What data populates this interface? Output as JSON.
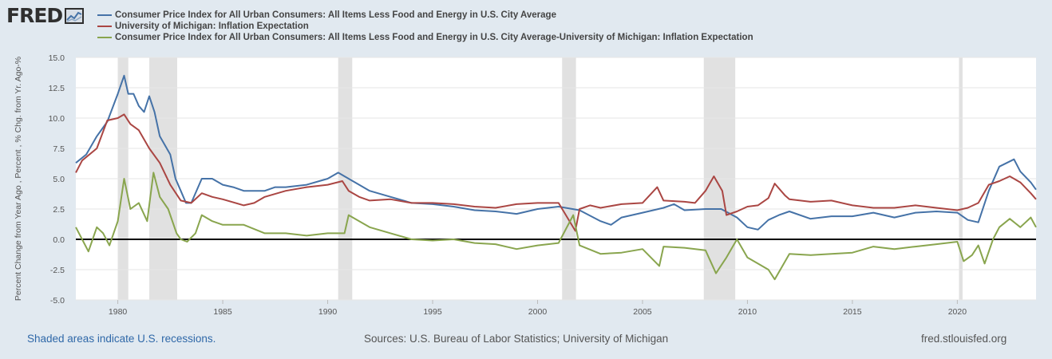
{
  "logo": {
    "text": "FRED",
    "icon": "fred-chart-icon"
  },
  "footer": {
    "recession_note": "Shaded areas indicate U.S. recessions.",
    "sources": "Sources: U.S. Bureau of Labor Statistics; University of Michigan",
    "site": "fred.stlouisfed.org"
  },
  "colors": {
    "background": "#e1e9f0",
    "plot": "#ffffff",
    "recession": "#e1e1e1",
    "zero_line": "#000000"
  },
  "chart_data": {
    "type": "line",
    "title": "",
    "xlabel": "",
    "ylabel": "Percent Change from Year Ago , Percent , % Chg. from Yr. Ago-%",
    "xlim": [
      1978.0,
      2023.75
    ],
    "ylim": [
      -5.0,
      15.0
    ],
    "x_ticks": [
      1980,
      1985,
      1990,
      1995,
      2000,
      2005,
      2010,
      2015,
      2020
    ],
    "x_tick_labels": [
      "1980",
      "1985",
      "1990",
      "1995",
      "2000",
      "2005",
      "2010",
      "2015",
      "2020"
    ],
    "y_ticks": [
      -5.0,
      -2.5,
      0.0,
      2.5,
      5.0,
      7.5,
      10.0,
      12.5,
      15.0
    ],
    "y_tick_labels": [
      "-5.0",
      "-2.5",
      "0.0",
      "2.5",
      "5.0",
      "7.5",
      "10.0",
      "12.5",
      "15.0"
    ],
    "grid": "horizontal",
    "legend": "top-left",
    "recessions": [
      [
        1980.0,
        1980.5
      ],
      [
        1981.5,
        1982.83
      ],
      [
        1990.5,
        1991.17
      ],
      [
        2001.17,
        2001.83
      ],
      [
        2007.92,
        2009.42
      ],
      [
        2020.08,
        2020.25
      ]
    ],
    "series": [
      {
        "name": "Consumer Price Index for All Urban Consumers: All Items Less Food and Energy in U.S. City Average",
        "color": "#4572a7",
        "x": [
          1978.0,
          1978.5,
          1979.0,
          1979.5,
          1980.0,
          1980.3,
          1980.5,
          1980.75,
          1981.0,
          1981.25,
          1981.5,
          1981.75,
          1982.0,
          1982.5,
          1982.75,
          1983.0,
          1983.25,
          1983.5,
          1984.0,
          1984.5,
          1985.0,
          1985.5,
          1986.0,
          1986.5,
          1987.0,
          1987.5,
          1988.0,
          1989.0,
          1990.0,
          1990.5,
          1991.0,
          1991.5,
          1992.0,
          1993.0,
          1994.0,
          1995.0,
          1996.0,
          1997.0,
          1998.0,
          1999.0,
          2000.0,
          2001.0,
          2002.0,
          2003.0,
          2003.5,
          2004.0,
          2005.0,
          2006.0,
          2006.5,
          2007.0,
          2008.0,
          2008.75,
          2009.5,
          2010.0,
          2010.5,
          2011.0,
          2011.5,
          2012.0,
          2013.0,
          2014.0,
          2015.0,
          2016.0,
          2017.0,
          2018.0,
          2019.0,
          2020.0,
          2020.5,
          2021.0,
          2021.5,
          2022.0,
          2022.7,
          2023.0,
          2023.5,
          2023.75
        ],
        "values": [
          6.3,
          7.0,
          8.5,
          9.7,
          12.0,
          13.5,
          12.0,
          12.0,
          11.0,
          10.5,
          11.8,
          10.5,
          8.5,
          7.0,
          5.0,
          4.0,
          3.0,
          3.0,
          5.0,
          5.0,
          4.5,
          4.3,
          4.0,
          4.0,
          4.0,
          4.3,
          4.3,
          4.5,
          5.0,
          5.5,
          5.0,
          4.5,
          4.0,
          3.5,
          3.0,
          2.9,
          2.7,
          2.4,
          2.3,
          2.1,
          2.5,
          2.7,
          2.4,
          1.5,
          1.2,
          1.8,
          2.2,
          2.6,
          2.9,
          2.4,
          2.5,
          2.5,
          1.8,
          1.0,
          0.8,
          1.6,
          2.0,
          2.3,
          1.7,
          1.9,
          1.9,
          2.2,
          1.8,
          2.2,
          2.3,
          2.2,
          1.6,
          1.4,
          4.0,
          6.0,
          6.6,
          5.6,
          4.7,
          4.1
        ]
      },
      {
        "name": "University of Michigan: Inflation Expectation",
        "color": "#aa4643",
        "x": [
          1978.0,
          1978.3,
          1979.0,
          1979.5,
          1980.0,
          1980.3,
          1980.6,
          1981.0,
          1981.5,
          1982.0,
          1982.5,
          1983.0,
          1983.5,
          1984.0,
          1984.5,
          1985.0,
          1986.0,
          1986.5,
          1987.0,
          1988.0,
          1989.0,
          1990.0,
          1990.7,
          1991.0,
          1991.5,
          1992.0,
          1993.0,
          1994.0,
          1995.0,
          1996.0,
          1997.0,
          1998.0,
          1999.0,
          2000.0,
          2001.0,
          2001.8,
          2002.0,
          2002.5,
          2003.0,
          2004.0,
          2005.0,
          2005.7,
          2006.0,
          2007.0,
          2007.5,
          2008.0,
          2008.4,
          2008.8,
          2009.0,
          2009.5,
          2010.0,
          2010.5,
          2011.0,
          2011.3,
          2011.8,
          2012.0,
          2013.0,
          2014.0,
          2015.0,
          2016.0,
          2017.0,
          2018.0,
          2019.0,
          2020.0,
          2020.5,
          2021.0,
          2021.5,
          2022.0,
          2022.5,
          2023.0,
          2023.5,
          2023.75
        ],
        "values": [
          5.5,
          6.5,
          7.5,
          9.8,
          10.0,
          10.3,
          9.5,
          9.0,
          7.5,
          6.3,
          4.5,
          3.2,
          3.0,
          3.8,
          3.5,
          3.3,
          2.8,
          3.0,
          3.5,
          4.0,
          4.3,
          4.5,
          4.8,
          4.0,
          3.5,
          3.2,
          3.3,
          3.0,
          3.0,
          2.9,
          2.7,
          2.6,
          2.9,
          3.0,
          3.0,
          0.7,
          2.5,
          2.8,
          2.6,
          2.9,
          3.0,
          4.3,
          3.2,
          3.1,
          3.0,
          4.0,
          5.2,
          4.0,
          2.0,
          2.3,
          2.7,
          2.8,
          3.4,
          4.6,
          3.6,
          3.3,
          3.1,
          3.2,
          2.8,
          2.6,
          2.6,
          2.8,
          2.6,
          2.4,
          2.6,
          3.0,
          4.5,
          4.8,
          5.2,
          4.7,
          3.8,
          3.3
        ]
      },
      {
        "name": "Consumer Price Index for All Urban Consumers: All Items Less Food and Energy in U.S. City Average-University of Michigan: Inflation Expectation",
        "color": "#89a54e",
        "x": [
          1978.0,
          1978.3,
          1978.6,
          1979.0,
          1979.3,
          1979.6,
          1980.0,
          1980.3,
          1980.6,
          1981.0,
          1981.4,
          1981.7,
          1982.0,
          1982.4,
          1982.8,
          1983.0,
          1983.3,
          1983.7,
          1984.0,
          1984.5,
          1985.0,
          1986.0,
          1987.0,
          1988.0,
          1989.0,
          1990.0,
          1990.8,
          1991.0,
          1991.5,
          1992.0,
          1993.0,
          1994.0,
          1995.0,
          1996.0,
          1997.0,
          1998.0,
          1999.0,
          2000.0,
          2001.0,
          2001.7,
          2002.0,
          2003.0,
          2004.0,
          2005.0,
          2005.8,
          2006.0,
          2007.0,
          2008.0,
          2008.5,
          2009.0,
          2009.5,
          2010.0,
          2010.5,
          2011.0,
          2011.3,
          2012.0,
          2013.0,
          2014.0,
          2015.0,
          2016.0,
          2017.0,
          2018.0,
          2019.0,
          2020.0,
          2020.3,
          2020.7,
          2021.0,
          2021.3,
          2021.7,
          2022.0,
          2022.5,
          2023.0,
          2023.5,
          2023.75
        ],
        "values": [
          1.0,
          0.0,
          -1.0,
          1.0,
          0.5,
          -0.5,
          1.5,
          5.0,
          2.5,
          3.0,
          1.5,
          5.5,
          3.5,
          2.5,
          0.5,
          0.0,
          -0.2,
          0.5,
          2.0,
          1.5,
          1.2,
          1.2,
          0.5,
          0.5,
          0.3,
          0.5,
          0.5,
          2.0,
          1.5,
          1.0,
          0.5,
          0.0,
          -0.1,
          0.0,
          -0.3,
          -0.4,
          -0.8,
          -0.5,
          -0.3,
          2.0,
          -0.5,
          -1.2,
          -1.1,
          -0.8,
          -2.2,
          -0.6,
          -0.7,
          -0.9,
          -2.8,
          -1.5,
          0.0,
          -1.5,
          -2.0,
          -2.5,
          -3.3,
          -1.2,
          -1.3,
          -1.2,
          -1.1,
          -0.6,
          -0.8,
          -0.6,
          -0.4,
          -0.2,
          -1.8,
          -1.3,
          -0.5,
          -2.0,
          0.0,
          1.0,
          1.7,
          1.0,
          1.8,
          1.0
        ]
      }
    ]
  }
}
